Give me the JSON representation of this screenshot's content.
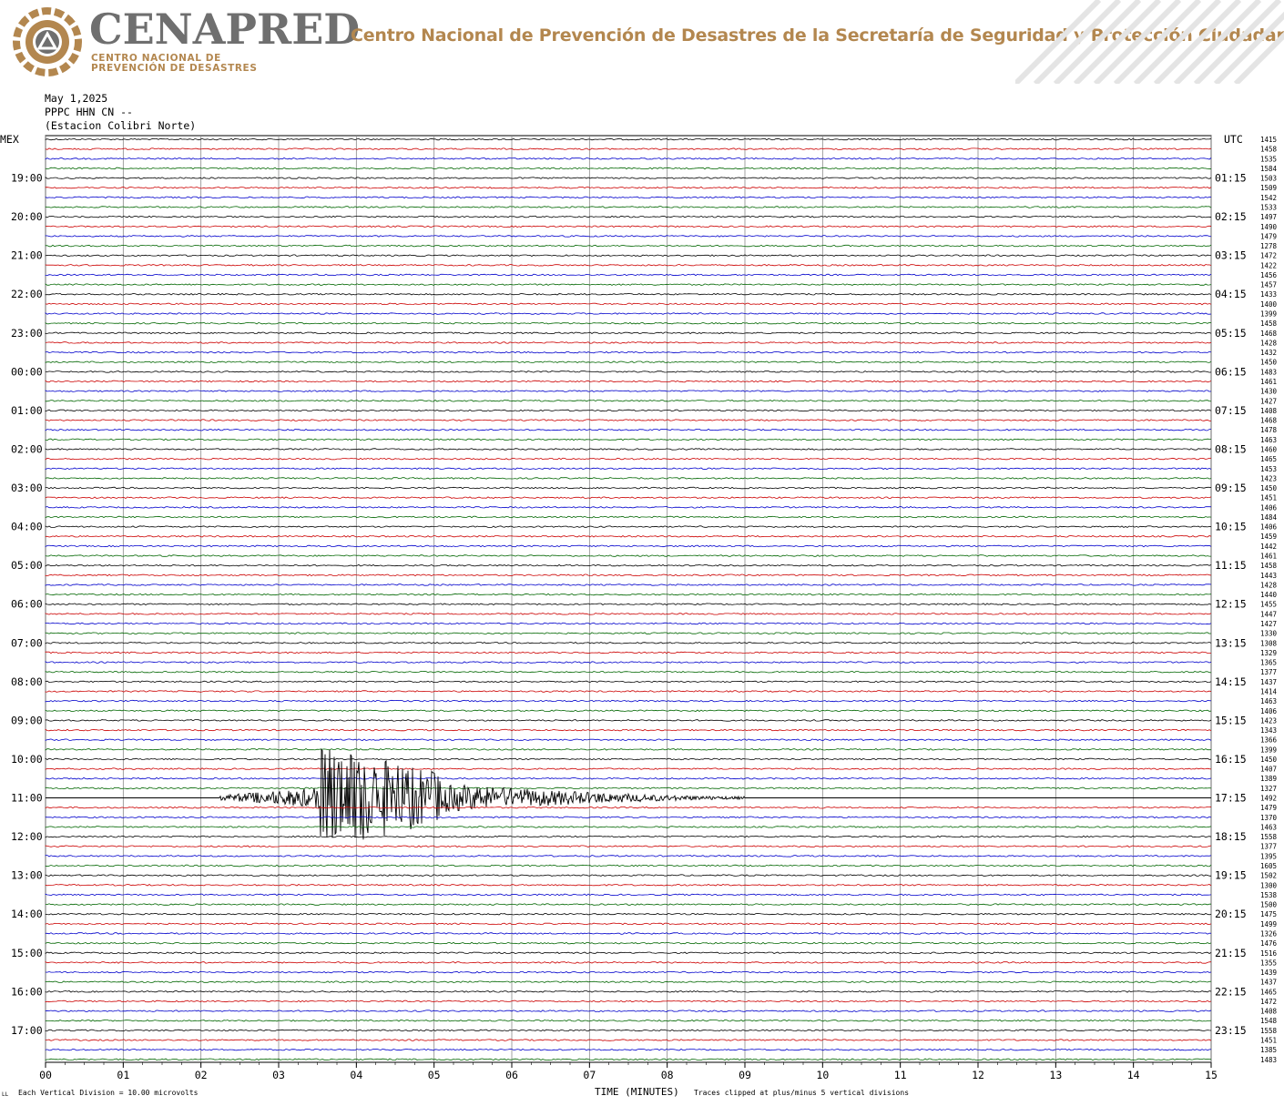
{
  "header": {
    "logo_word": "CENAPRED",
    "logo_sub_1": "CENTRO NACIONAL DE",
    "logo_sub_2": "PREVENCIÓN DE DESASTRES",
    "org_name": "Centro Nacional de Prevención de Desastres de la Secretaría de Seguridad y Protección Ciudadana",
    "brand_gold": "#b3874f",
    "brand_grey": "#6f6f6f"
  },
  "meta": {
    "date": "May 1,2025",
    "channel": "PPPC HHN CN --",
    "station": "(Estacion Colibri Norte)"
  },
  "footer": {
    "division": "Each Vertical Division =   10.00 microvolts",
    "xlabel": "TIME (MINUTES)",
    "clip_note": "Traces clipped at plus/minus 5 vertical divisions",
    "corner": "LL"
  },
  "chart_data": {
    "type": "line",
    "title": "",
    "xlabel": "TIME (MINUTES)",
    "ylabel": "",
    "left_axis_label": "MEX",
    "right_axis_label": "UTC",
    "xlim": [
      0,
      15
    ],
    "x_ticks": [
      "00",
      "01",
      "02",
      "03",
      "04",
      "05",
      "06",
      "07",
      "08",
      "09",
      "10",
      "11",
      "12",
      "13",
      "14",
      "15"
    ],
    "trace_colors": [
      "#000000",
      "#cc0000",
      "#0000cc",
      "#006600"
    ],
    "mex_hours": [
      "19:00",
      "20:00",
      "21:00",
      "22:00",
      "23:00",
      "00:00",
      "01:00",
      "02:00",
      "03:00",
      "04:00",
      "05:00",
      "06:00",
      "07:00",
      "08:00",
      "09:00",
      "10:00",
      "11:00",
      "12:00",
      "13:00",
      "14:00",
      "15:00",
      "16:00",
      "17:00"
    ],
    "utc_hours": [
      "01:15",
      "02:15",
      "03:15",
      "04:15",
      "05:15",
      "06:15",
      "07:15",
      "08:15",
      "09:15",
      "10:15",
      "11:15",
      "12:15",
      "13:15",
      "14:15",
      "15:15",
      "16:15",
      "17:15",
      "18:15",
      "19:15",
      "20:15",
      "21:15",
      "22:15",
      "23:15"
    ],
    "trace_counts": [
      "1415",
      "1458",
      "1535",
      "1584",
      "1503",
      "1509",
      "1542",
      "1533",
      "1497",
      "1490",
      "1479",
      "1278",
      "1472",
      "1422",
      "1456",
      "1457",
      "1433",
      "1400",
      "1399",
      "1458",
      "1468",
      "1428",
      "1432",
      "1450",
      "1483",
      "1461",
      "1430",
      "1427",
      "1408",
      "1468",
      "1478",
      "1463",
      "1460",
      "1465",
      "1453",
      "1423",
      "1450",
      "1451",
      "1406",
      "1484",
      "1406",
      "1459",
      "1442",
      "1461",
      "1458",
      "1443",
      "1428",
      "1440",
      "1455",
      "1447",
      "1427",
      "1330",
      "1308",
      "1329",
      "1365",
      "1377",
      "1437",
      "1414",
      "1463",
      "1406",
      "1423",
      "1343",
      "1366",
      "1399",
      "1450",
      "1407",
      "1389",
      "1327",
      "1492",
      "1479",
      "1370",
      "1463",
      "1558",
      "1377",
      "1395",
      "1605",
      "1502",
      "1300",
      "1538",
      "1500",
      "1475",
      "1499",
      "1326",
      "1476",
      "1516",
      "1355",
      "1439",
      "1437",
      "1465",
      "1472",
      "1408",
      "1548",
      "1558",
      "1451",
      "1385",
      "1483"
    ],
    "event": {
      "trace_label": "11:00",
      "onset_minute": 2.25,
      "peak_start_minute": 3.5,
      "peak_end_minute": 5.1,
      "coda_end_minute": 9.0,
      "clipped": true
    }
  }
}
